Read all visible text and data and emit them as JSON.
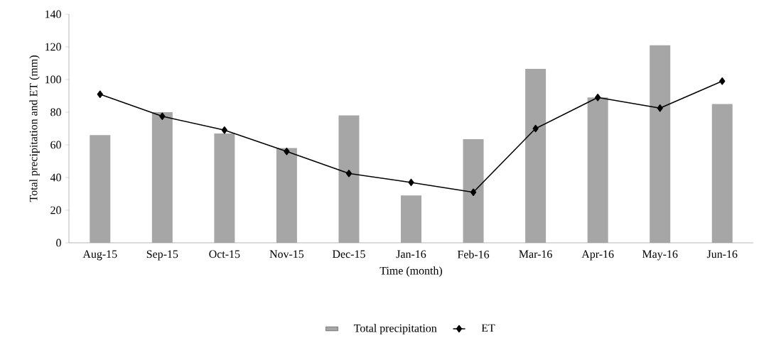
{
  "chart_data": {
    "type": "bar",
    "xlabel": "Time (month)",
    "ylabel": "Total precipitation and ET (mm)",
    "categories": [
      "Aug-15",
      "Sep-15",
      "Oct-15",
      "Nov-15",
      "Dec-15",
      "Jan-16",
      "Feb-16",
      "Mar-16",
      "Apr-16",
      "May-16",
      "Jun-16"
    ],
    "series": [
      {
        "name": "Total precipitation",
        "color": "#a6a6a6",
        "values": [
          66,
          80,
          67,
          58,
          78,
          29,
          63.5,
          106.5,
          89,
          121,
          85
        ]
      },
      {
        "name": "ET",
        "type": "line",
        "color": "#000000",
        "values": [
          91,
          77.5,
          69,
          56,
          42.5,
          37,
          31,
          70,
          89,
          82.5,
          99
        ]
      }
    ],
    "ylim": [
      0,
      140
    ],
    "yticks": [
      0,
      20,
      40,
      60,
      80,
      100,
      120,
      140
    ],
    "grid": false,
    "legend": "bottom",
    "marker": "diamond"
  }
}
